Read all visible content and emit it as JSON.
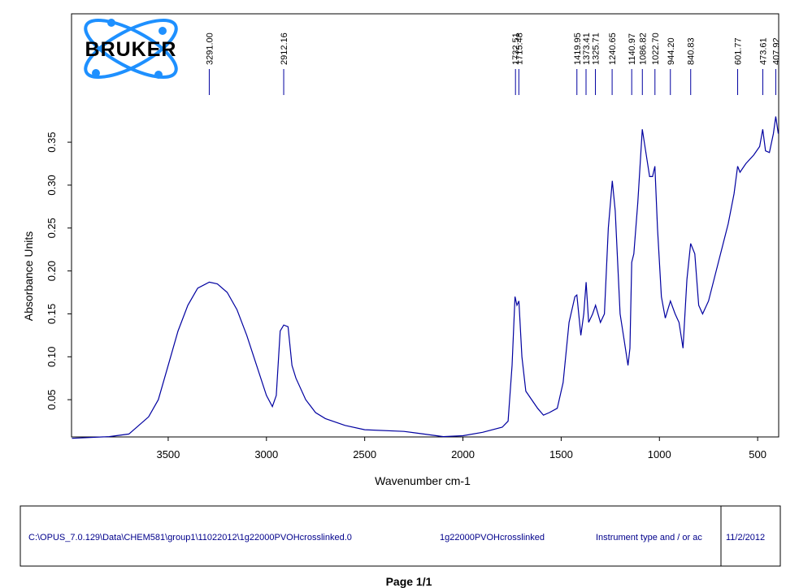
{
  "chart_data": {
    "type": "line",
    "logo": "BRUKER",
    "xlabel": "Wavenumber cm-1",
    "ylabel": "Absorbance Units",
    "xlim": [
      3992,
      393
    ],
    "ylim": [
      0.0066,
      0.4996
    ],
    "xticks": [
      3500,
      3000,
      2500,
      2000,
      1500,
      1000,
      500
    ],
    "yticks": [
      0.05,
      {
        "value": 0.1,
        "label": "0.10"
      },
      0.15,
      {
        "value": 0.2,
        "label": "0.20"
      },
      0.25,
      {
        "value": 0.3,
        "label": "0.30"
      },
      0.35
    ],
    "peaks": [
      3291,
      2912.16,
      1732.51,
      1715.48,
      1419.95,
      1373.41,
      1325.71,
      1240.65,
      1140.97,
      1086.82,
      1022.7,
      944.2,
      840.83,
      601.77,
      473.61,
      407.92
    ],
    "peak_labels": [
      "3291.00",
      "2912.16",
      "1732.51",
      "1715.48",
      "1419.95",
      "1373.41",
      "1325.71",
      "1240.65",
      "1140.97",
      "1086.82",
      "1022.70",
      "944.20",
      "840.83",
      "601.77",
      "473.61",
      "407.92"
    ],
    "peak_color": "#0000a0",
    "x": [
      3990,
      3800,
      3700,
      3600,
      3550,
      3500,
      3450,
      3400,
      3350,
      3291,
      3250,
      3200,
      3150,
      3100,
      3050,
      3000,
      2970,
      2950,
      2930,
      2912,
      2890,
      2870,
      2850,
      2800,
      2750,
      2700,
      2600,
      2500,
      2300,
      2200,
      2100,
      2000,
      1900,
      1800,
      1770,
      1750,
      1735,
      1725,
      1715,
      1700,
      1680,
      1650,
      1620,
      1590,
      1560,
      1520,
      1490,
      1460,
      1430,
      1420,
      1400,
      1385,
      1373,
      1360,
      1340,
      1325,
      1300,
      1280,
      1260,
      1240,
      1225,
      1200,
      1180,
      1160,
      1150,
      1141,
      1130,
      1110,
      1087,
      1070,
      1050,
      1035,
      1023,
      1010,
      990,
      970,
      944,
      920,
      900,
      880,
      860,
      841,
      820,
      800,
      780,
      750,
      700,
      650,
      620,
      602,
      590,
      560,
      520,
      490,
      474,
      460,
      440,
      420,
      408,
      395
    ],
    "series": [
      {
        "color": "#0000a0",
        "values": [
          0.005,
          0.007,
          0.01,
          0.03,
          0.05,
          0.09,
          0.13,
          0.16,
          0.18,
          0.187,
          0.185,
          0.175,
          0.155,
          0.125,
          0.09,
          0.055,
          0.042,
          0.055,
          0.13,
          0.137,
          0.135,
          0.09,
          0.075,
          0.05,
          0.035,
          0.028,
          0.02,
          0.015,
          0.013,
          0.01,
          0.007,
          0.008,
          0.012,
          0.018,
          0.025,
          0.09,
          0.17,
          0.16,
          0.165,
          0.1,
          0.06,
          0.05,
          0.04,
          0.032,
          0.035,
          0.04,
          0.07,
          0.14,
          0.17,
          0.172,
          0.125,
          0.15,
          0.187,
          0.14,
          0.15,
          0.16,
          0.14,
          0.15,
          0.25,
          0.305,
          0.27,
          0.15,
          0.12,
          0.09,
          0.11,
          0.21,
          0.22,
          0.28,
          0.365,
          0.34,
          0.31,
          0.31,
          0.322,
          0.25,
          0.17,
          0.145,
          0.165,
          0.15,
          0.14,
          0.11,
          0.19,
          0.232,
          0.22,
          0.16,
          0.15,
          0.165,
          0.21,
          0.255,
          0.29,
          0.322,
          0.315,
          0.325,
          0.335,
          0.345,
          0.365,
          0.34,
          0.338,
          0.36,
          0.38,
          0.36
        ]
      }
    ]
  },
  "footer": {
    "path": "C:\\OPUS_7.0.129\\Data\\CHEM581\\group1\\11022012\\1g22000PVOHcrosslinked.0",
    "sample": "1g22000PVOHcrosslinked",
    "instrument": "Instrument type and / or ac",
    "date": "11/2/2012",
    "page": "Page 1/1"
  }
}
